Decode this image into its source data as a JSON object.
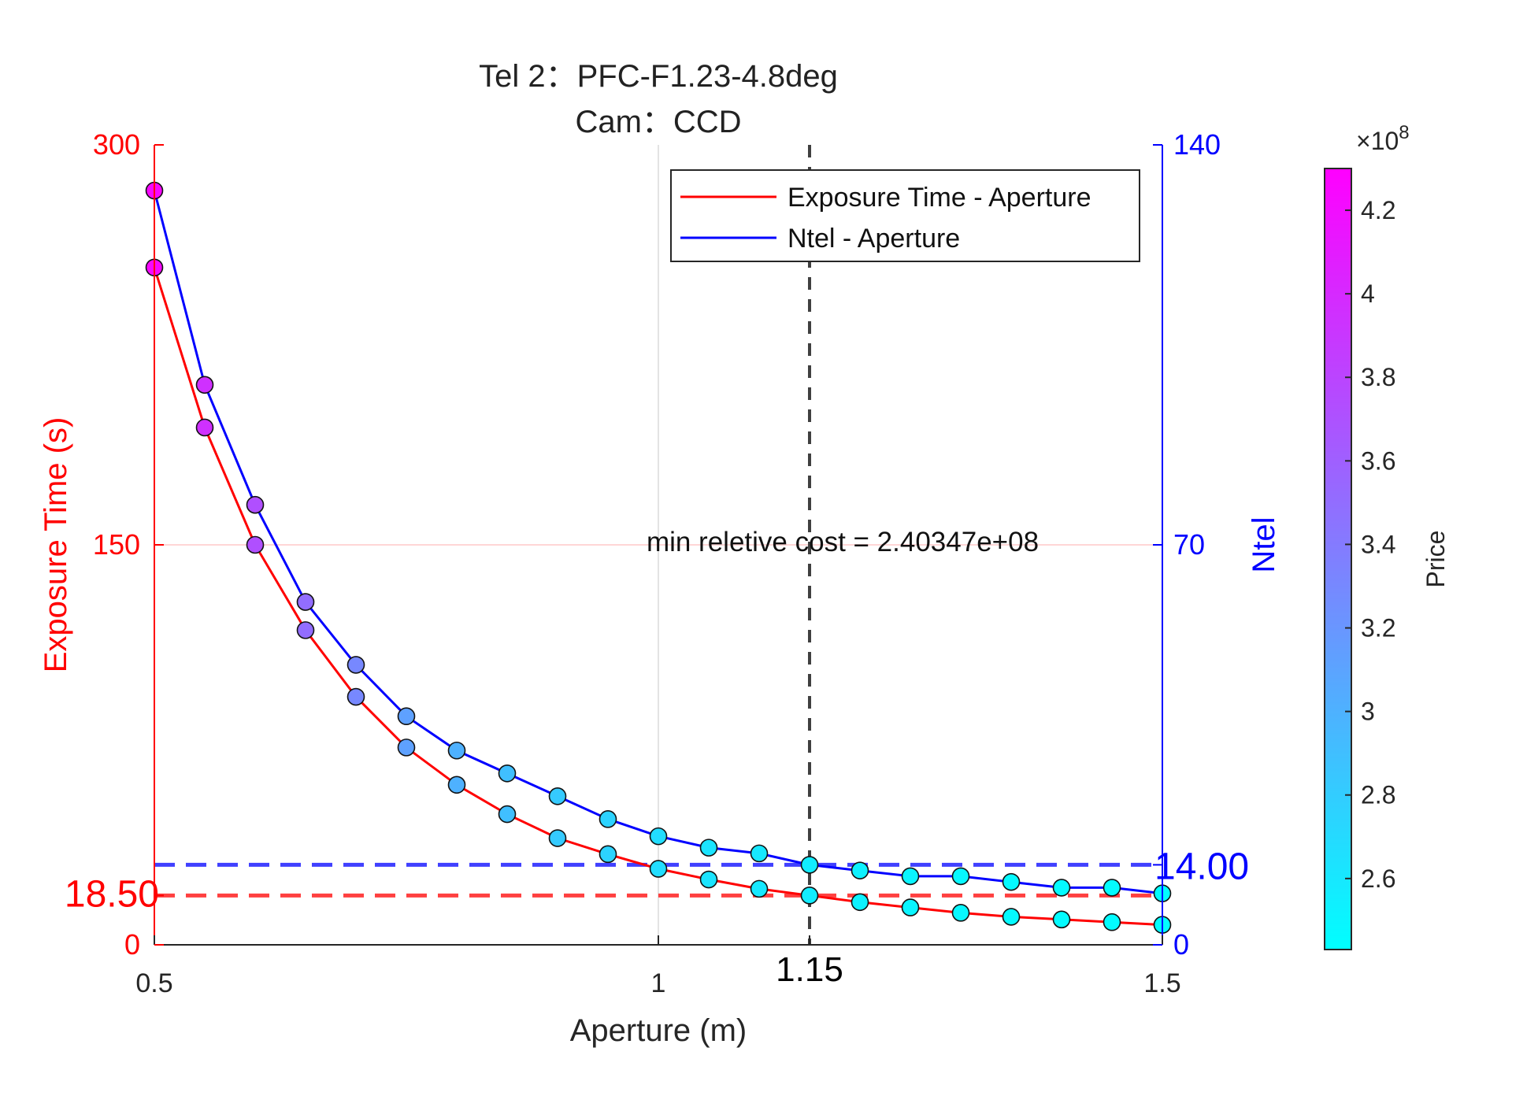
{
  "chart_data": {
    "type": "line",
    "title_lines": [
      "Tel 2：PFC-F1.23-4.8deg",
      "Cam：CCD"
    ],
    "xlabel": "Aperture (m)",
    "ylabel_left": "Exposure Time (s)",
    "ylabel_right": "Ntel",
    "colorbar_label": "Price",
    "colorbar_exponent": "×10",
    "colorbar_exponent_power": "8",
    "xlim": [
      0.5,
      1.5
    ],
    "ylim_left": [
      0,
      300
    ],
    "ylim_right": [
      0,
      140
    ],
    "clim": [
      2.43,
      4.3
    ],
    "x_ticks": [
      {
        "value": 0.5,
        "label": "0.5"
      },
      {
        "value": 1.0,
        "label": "1"
      },
      {
        "value": 1.15,
        "label": "1.15"
      },
      {
        "value": 1.5,
        "label": "1.5"
      }
    ],
    "y_left_ticks": [
      {
        "value": 0,
        "label": "0"
      },
      {
        "value": 18.5,
        "label": "18.50"
      },
      {
        "value": 150,
        "label": "150"
      },
      {
        "value": 300,
        "label": "300"
      }
    ],
    "y_right_ticks": [
      {
        "value": 0,
        "label": "0"
      },
      {
        "value": 14,
        "label": "14.00"
      },
      {
        "value": 70,
        "label": "70"
      },
      {
        "value": 140,
        "label": "140"
      }
    ],
    "colorbar_ticks": [
      {
        "value": 2.6,
        "label": "2.6"
      },
      {
        "value": 2.8,
        "label": "2.8"
      },
      {
        "value": 3.0,
        "label": "3"
      },
      {
        "value": 3.2,
        "label": "3.2"
      },
      {
        "value": 3.4,
        "label": "3.4"
      },
      {
        "value": 3.6,
        "label": "3.6"
      },
      {
        "value": 3.8,
        "label": "3.8"
      },
      {
        "value": 4.0,
        "label": "4"
      },
      {
        "value": 4.2,
        "label": "4.2"
      }
    ],
    "x": [
      0.5,
      0.55,
      0.6,
      0.65,
      0.7,
      0.75,
      0.8,
      0.85,
      0.9,
      0.95,
      1.0,
      1.05,
      1.1,
      1.15,
      1.2,
      1.25,
      1.3,
      1.35,
      1.4,
      1.45,
      1.5
    ],
    "series": [
      {
        "name": "Exposure Time - Aperture",
        "axis": "left",
        "color": "#ff0000",
        "values": [
          254,
          194,
          150,
          118,
          93,
          74,
          60,
          49,
          40,
          34,
          28.5,
          24.5,
          21,
          18.5,
          16,
          14,
          12,
          10.5,
          9.5,
          8.5,
          7.5
        ]
      },
      {
        "name": "Ntel - Aperture",
        "axis": "right",
        "color": "#0000ff",
        "values": [
          132,
          98,
          77,
          60,
          49,
          40,
          34,
          30,
          26,
          22,
          19,
          17,
          16,
          14,
          13,
          12,
          12,
          11,
          10,
          10,
          9
        ]
      }
    ],
    "price": [
      4.25,
      3.95,
      3.72,
      3.5,
      3.3,
      3.12,
      3.0,
      2.9,
      2.82,
      2.75,
      2.68,
      2.63,
      2.6,
      2.56,
      2.53,
      2.5,
      2.48,
      2.47,
      2.46,
      2.45,
      2.44
    ],
    "vertical_line": {
      "x": 1.15,
      "color": "#404040"
    },
    "horizontal_lines": [
      {
        "axis": "left",
        "y": 18.5,
        "color": "#ff4040"
      },
      {
        "axis": "right",
        "y": 14,
        "color": "#4040ff"
      }
    ],
    "annotation": {
      "text": "min reletive cost = 2.40347e+08",
      "x": 1.15,
      "y_left": 150
    },
    "legend": {
      "placement": "top-right"
    },
    "grid": {
      "x_lines": [
        1.0
      ],
      "y_lines": [
        150
      ]
    },
    "colors": {
      "left_axis": "#ff0000",
      "right_axis": "#0000ff",
      "colormap_low": "#00ffff",
      "colormap_high": "#ff00ff"
    }
  }
}
